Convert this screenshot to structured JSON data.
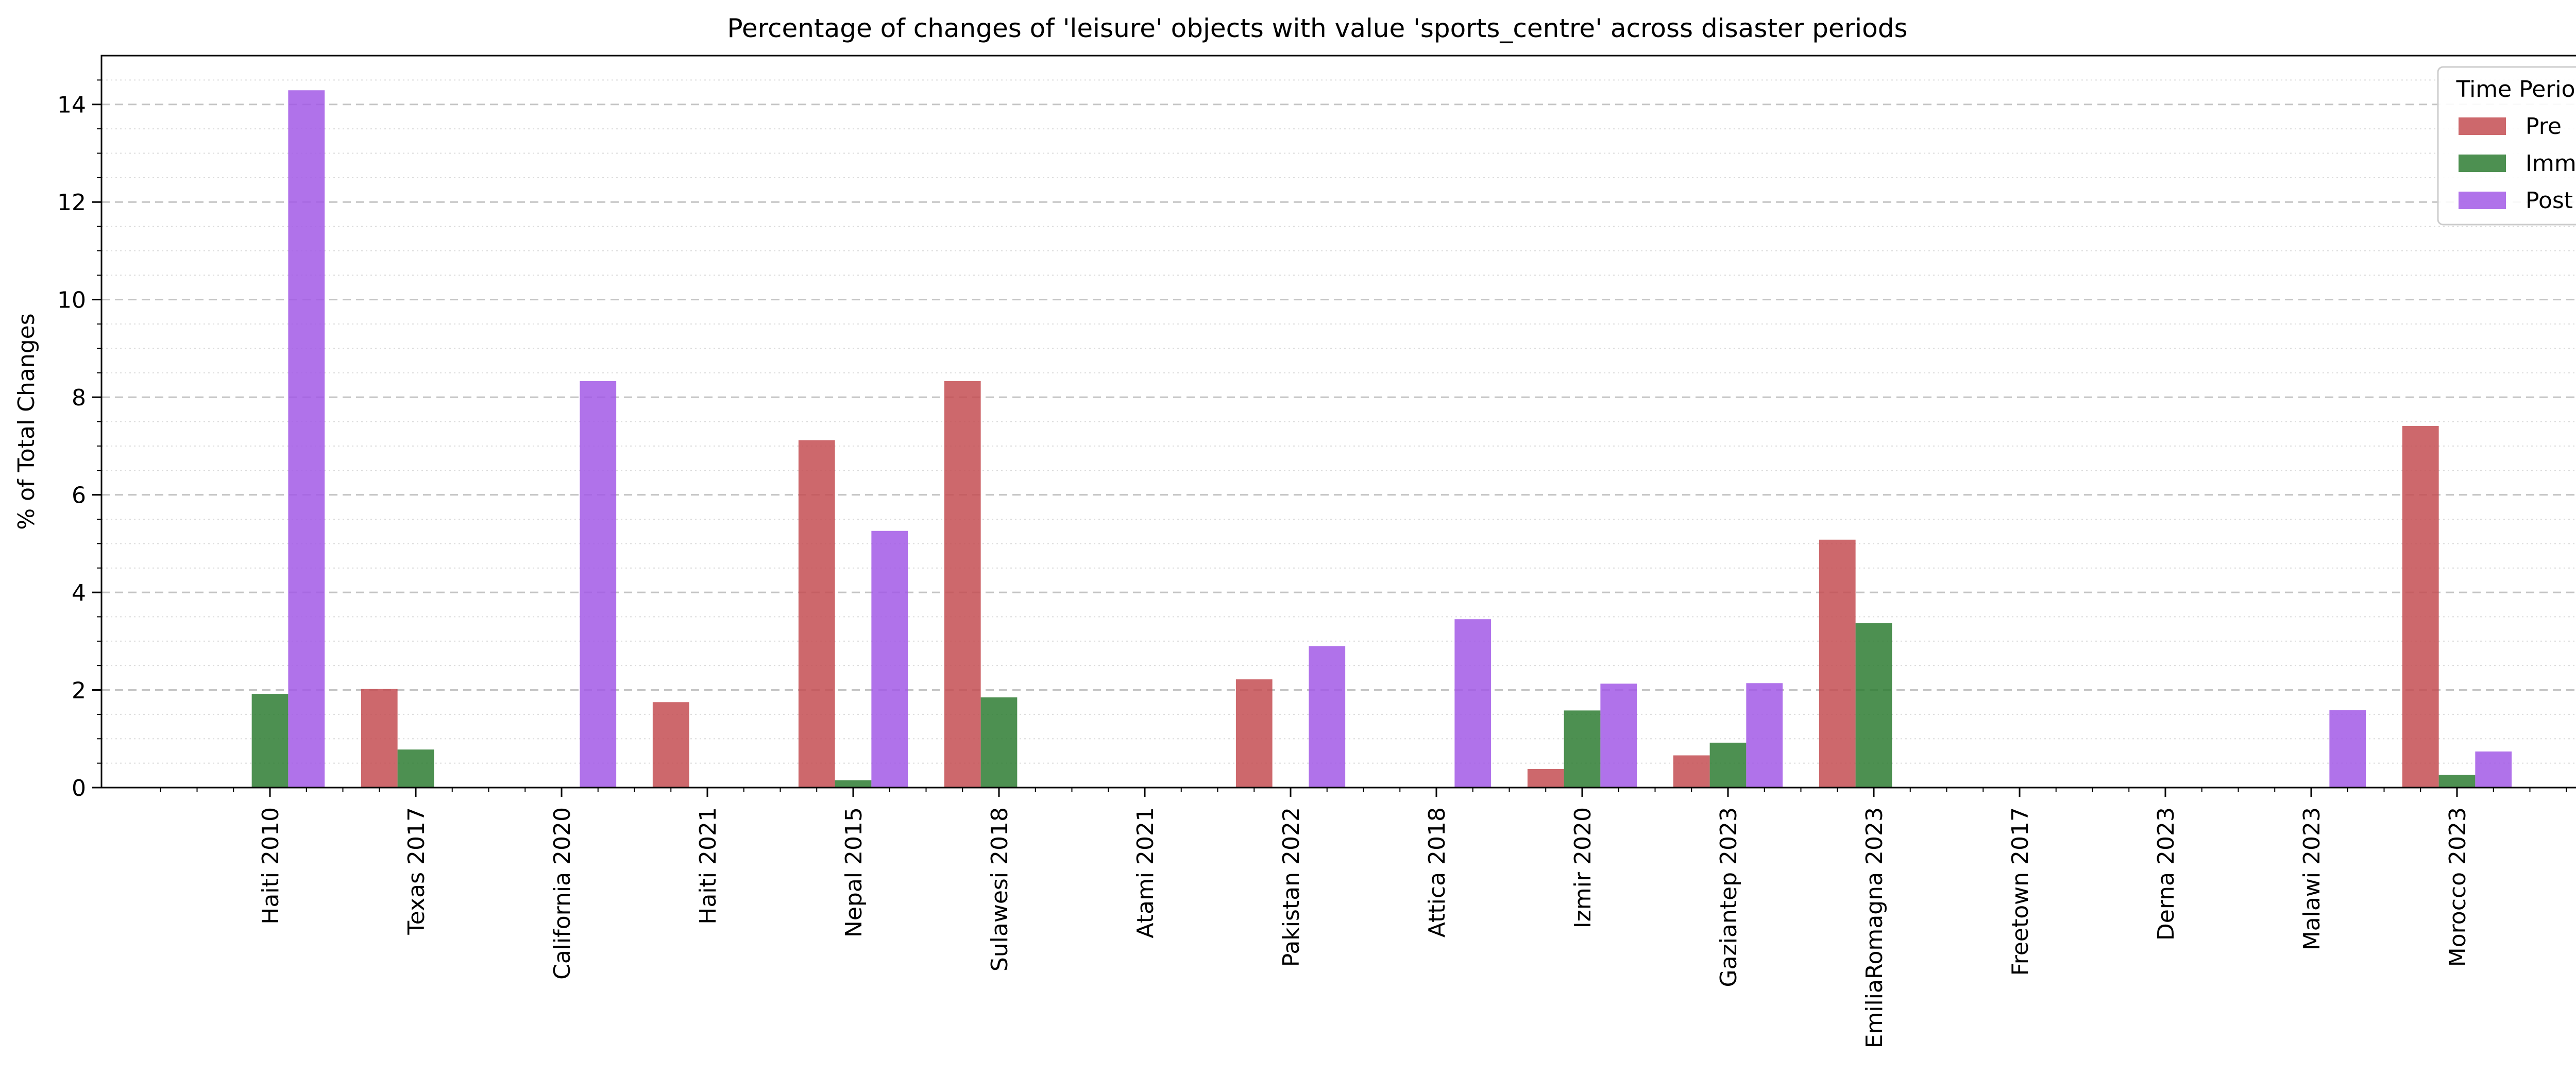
{
  "chart_data": {
    "type": "bar",
    "title": "Percentage of changes of 'leisure' objects with value 'sports_centre' across disaster periods",
    "xlabel": "",
    "ylabel": "% of Total Changes",
    "ylim": [
      0,
      15
    ],
    "yticks": [
      0,
      2,
      4,
      6,
      8,
      10,
      12,
      14
    ],
    "categories": [
      "Haiti 2010",
      "Texas 2017",
      "California 2020",
      "Haiti 2021",
      "Nepal 2015",
      "Sulawesi 2018",
      "Atami 2021",
      "Pakistan 2022",
      "Attica 2018",
      "Izmir 2020",
      "Gaziantep 2023",
      "EmiliaRomagna 2023",
      "Freetown 2017",
      "Derna 2023",
      "Malawi 2023",
      "Morocco 2023"
    ],
    "series": [
      {
        "name": "Pre",
        "color": "#c44e52",
        "values": [
          0,
          2.02,
          0,
          1.75,
          7.12,
          8.33,
          0,
          2.22,
          0,
          0.38,
          0.66,
          5.08,
          0,
          0,
          0,
          7.41
        ]
      },
      {
        "name": "Imm",
        "color": "#2e7d32",
        "values": [
          1.92,
          0.78,
          0,
          0,
          0.15,
          1.85,
          0,
          0,
          0,
          1.58,
          0.92,
          3.37,
          0,
          0,
          0,
          0.26
        ]
      },
      {
        "name": "Post",
        "color": "#a259e6",
        "values": [
          14.29,
          0,
          8.33,
          0,
          5.26,
          0,
          0,
          2.9,
          3.45,
          2.13,
          2.14,
          0,
          0,
          0,
          1.59,
          0.74
        ]
      }
    ],
    "grid": "horizontal dashed major, dotted minor",
    "legend": {
      "title": "Time Period",
      "placement": "top-right"
    }
  }
}
